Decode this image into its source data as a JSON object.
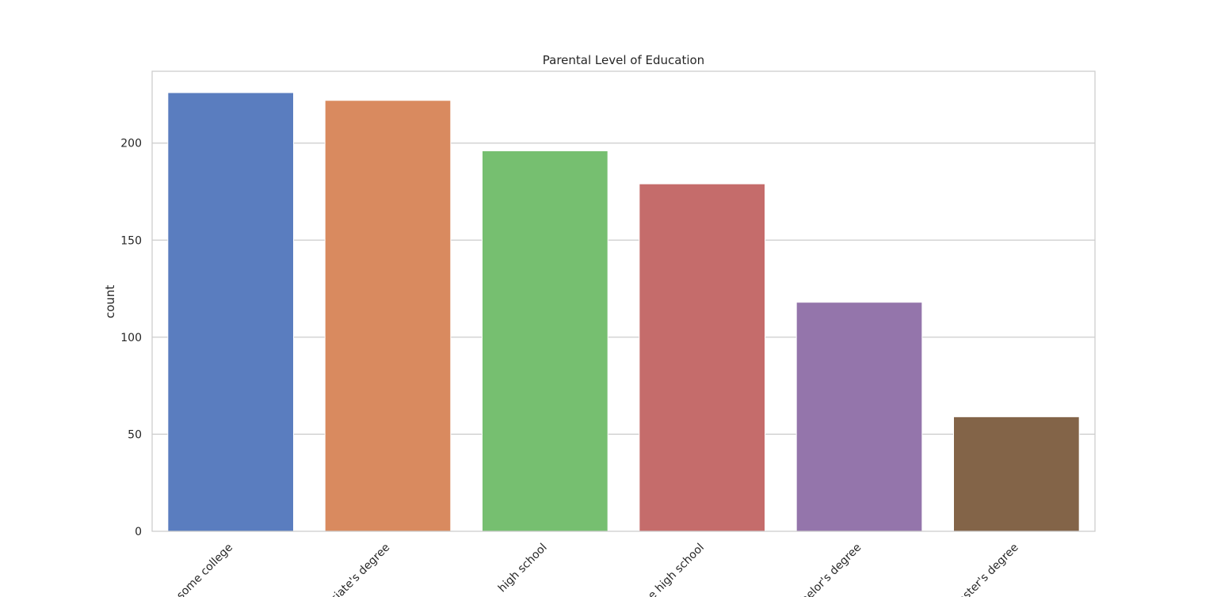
{
  "chart_data": {
    "type": "bar",
    "title": "Parental Level of Education",
    "xlabel": "",
    "ylabel": "count",
    "categories": [
      "some college",
      "associate's degree",
      "high school",
      "some high school",
      "bachelor's degree",
      "master's degree"
    ],
    "values": [
      226,
      222,
      196,
      179,
      118,
      59
    ],
    "colors": [
      "#5a7dbf",
      "#d98a5f",
      "#76bf70",
      "#c56c6b",
      "#9475ab",
      "#836448"
    ],
    "ylim": [
      0,
      237
    ],
    "yticks": [
      0,
      50,
      100,
      150,
      200
    ],
    "grid": true,
    "legend": "none"
  }
}
